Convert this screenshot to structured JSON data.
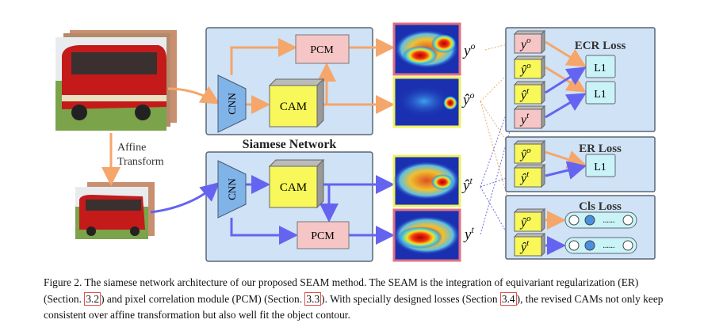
{
  "figure": {
    "network_title": "Siamese Network",
    "affine_label_line1": "Affine",
    "affine_label_line2": "Transform",
    "modules": {
      "cnn": "CNN",
      "cam": "CAM",
      "pcm": "PCM"
    },
    "outputs": {
      "y_o": "y",
      "yhat_o": "ŷ",
      "yhat_t": "ŷ",
      "y_t": "y",
      "sup_o": "o",
      "sup_t": "t"
    },
    "losses": {
      "ecr": {
        "title": "ECR Loss",
        "op": "L1"
      },
      "er": {
        "title": "ER Loss",
        "op": "L1"
      },
      "cls": {
        "title": "Cls Loss",
        "dots": "......"
      }
    },
    "colors": {
      "orange": "#f5a66a",
      "blue": "#6464f0",
      "box": "#cfe2f6",
      "cnn": "#80b3e8",
      "cam": "#f8f85a",
      "pcm": "#f6c6c6",
      "l1": "#c9f3f7"
    }
  },
  "caption": {
    "p1": "Figure 2. The siamese network architecture of our proposed SEAM method.  The SEAM is the integration of equivariant regularization (ER) (Section. ",
    "r1": "3.2",
    "p2": ") and pixel correlation module (PCM) (Section. ",
    "r2": "3.3",
    "p3": "). With specially designed losses (Section ",
    "r3": "3.4",
    "p4": "), the revised CAMs not only keep consistent over affine transformation but also well fit the object contour."
  }
}
